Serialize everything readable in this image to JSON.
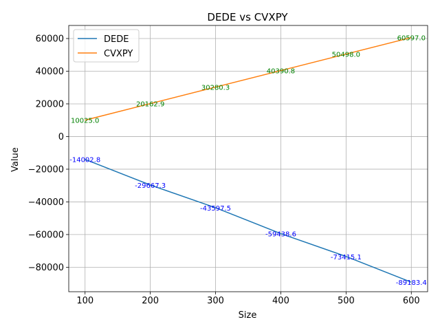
{
  "chart_data": {
    "type": "line",
    "title": "DEDE vs CVXPY",
    "xlabel": "Size",
    "ylabel": "Value",
    "x": [
      100,
      200,
      300,
      400,
      500,
      600
    ],
    "xlim": [
      75,
      625
    ],
    "ylim": [
      -95000,
      68000
    ],
    "xticks": [
      100,
      200,
      300,
      400,
      500,
      600
    ],
    "yticks": [
      -80000,
      -60000,
      -40000,
      -20000,
      0,
      20000,
      40000,
      60000
    ],
    "ytick_labels": [
      "−80000",
      "−60000",
      "−40000",
      "−20000",
      "0",
      "20000",
      "40000",
      "60000"
    ],
    "grid": true,
    "legend_position": "top-left",
    "series": [
      {
        "name": "DEDE",
        "color": "#1f77b4",
        "label_color": "#0000ff",
        "values": [
          -14002.8,
          -29667.3,
          -43597.5,
          -59438.6,
          -73415.1,
          -89183.4
        ],
        "labels": [
          "-14002.8",
          "-29667.3",
          "-43597.5",
          "-59438.6",
          "-73415.1",
          "-89183.4"
        ]
      },
      {
        "name": "CVXPY",
        "color": "#ff7f0e",
        "label_color": "#008000",
        "values": [
          10025.0,
          20162.9,
          30280.3,
          40390.8,
          50498.0,
          60597.0
        ],
        "labels": [
          "10025.0",
          "20162.9",
          "30280.3",
          "40390.8",
          "50498.0",
          "60597.0"
        ]
      }
    ]
  }
}
